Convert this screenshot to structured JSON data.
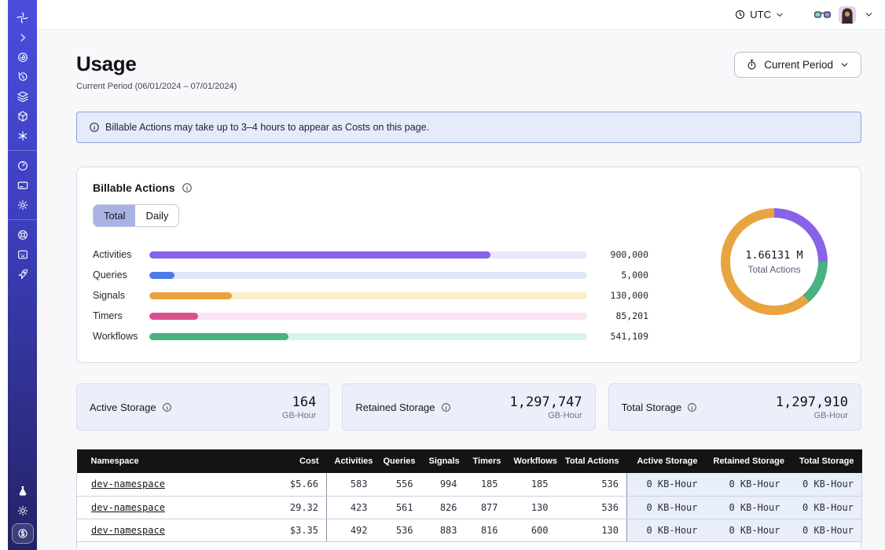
{
  "topbar": {
    "timezone_label": "UTC",
    "icons": [
      "clock-icon",
      "chevron-down-icon",
      "glasses-icon",
      "avatar",
      "chevron-down-icon"
    ]
  },
  "sidebar": {
    "items": [
      {
        "icon": "temporal-logo-icon"
      },
      {
        "icon": "chevron-right-collapse-icon"
      },
      {
        "icon": "namespaces-icon"
      },
      {
        "icon": "schedules-icon"
      },
      {
        "icon": "layers-icon"
      },
      {
        "icon": "cube-icon"
      },
      {
        "icon": "nexus-asterisk-icon"
      },
      {
        "icon": "usage-gauge-icon"
      },
      {
        "icon": "billing-card-icon"
      },
      {
        "icon": "settings-gear-icon"
      },
      {
        "icon": "support-lifebuoy-icon"
      },
      {
        "icon": "docs-monitor-icon"
      },
      {
        "icon": "rocket-icon"
      },
      {
        "icon": "labs-flask-icon"
      },
      {
        "icon": "theme-sun-icon"
      },
      {
        "icon": "usage-dollar-icon",
        "active": true
      }
    ]
  },
  "page": {
    "title": "Usage",
    "subtitle": "Current Period (06/01/2024 – 07/01/2024)",
    "period_button_label": "Current Period"
  },
  "banner": {
    "text": "Billable Actions may take up to 3–4 hours to appear as Costs on this page."
  },
  "billable": {
    "title": "Billable Actions",
    "tabs": [
      {
        "label": "Total",
        "active": true
      },
      {
        "label": "Daily",
        "active": false
      }
    ]
  },
  "chart_data": [
    {
      "type": "bar",
      "orientation": "horizontal",
      "title": "Billable Actions (Total)",
      "categories": [
        "Activities",
        "Queries",
        "Signals",
        "Timers",
        "Workflows"
      ],
      "values": [
        900000,
        5000,
        130000,
        85201,
        541109
      ],
      "value_labels": [
        "900,000",
        "5,000",
        "130,000",
        "85,201",
        "541,109"
      ],
      "colors": [
        "#8763e8",
        "#4a7be8",
        "#e8a23c",
        "#d9508f",
        "#49b27e"
      ],
      "track_colors": [
        "#eae5fa",
        "#dde7f8",
        "#faeecb",
        "#fbe3f3",
        "#d8f4e4"
      ],
      "bar_fill_pct": [
        78,
        5.7,
        18.9,
        11.1,
        31.8
      ],
      "legend_position": "none",
      "grid": false
    },
    {
      "type": "donut",
      "center_value": "1.66131 M",
      "center_label": "Total Actions",
      "segments": [
        {
          "name": "purple",
          "color": "#8763e8",
          "pct": 25
        },
        {
          "name": "green",
          "color": "#49b27e",
          "pct": 13.6
        },
        {
          "name": "orange",
          "color": "#e8a43e",
          "pct": 61.4
        }
      ]
    }
  ],
  "storage_cards": [
    {
      "label": "Active Storage",
      "value": "164",
      "unit": "GB-Hour"
    },
    {
      "label": "Retained Storage",
      "value": "1,297,747",
      "unit": "GB-Hour"
    },
    {
      "label": "Total Storage",
      "value": "1,297,910",
      "unit": "GB-Hour"
    }
  ],
  "table": {
    "columns": [
      "Namespace",
      "Cost",
      "Activities",
      "Queries",
      "Signals",
      "Timers",
      "Workflows",
      "Total Actions",
      "Active Storage",
      "Retained Storage",
      "Total Storage"
    ],
    "rows": [
      {
        "namespace": "dev-namespace",
        "cost": "$5.66",
        "activities": "583",
        "queries": "556",
        "signals": "994",
        "timers": "185",
        "workflows": "185",
        "total_actions": "536",
        "active_storage": "0 KB-Hour",
        "retained_storage": "0 KB-Hour",
        "total_storage": "0 KB-Hour"
      },
      {
        "namespace": "dev-namespace",
        "cost": "29.32",
        "activities": "423",
        "queries": "561",
        "signals": "826",
        "timers": "877",
        "workflows": "130",
        "total_actions": "536",
        "active_storage": "0 KB-Hour",
        "retained_storage": "0 KB-Hour",
        "total_storage": "0 KB-Hour"
      },
      {
        "namespace": "dev-namespace",
        "cost": "$3.35",
        "activities": "492",
        "queries": "536",
        "signals": "883",
        "timers": "816",
        "workflows": "600",
        "total_actions": "130",
        "active_storage": "0 KB-Hour",
        "retained_storage": "0 KB-Hour",
        "total_storage": "0 KB-Hour"
      }
    ]
  }
}
